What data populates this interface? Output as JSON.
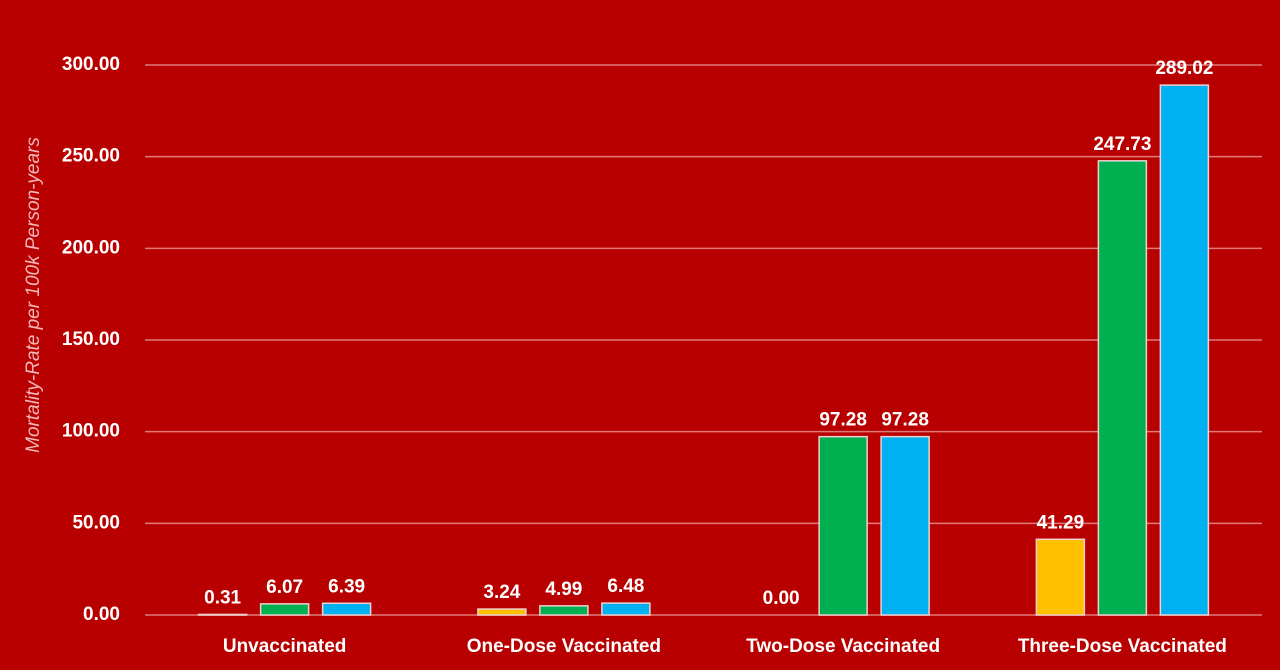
{
  "chart_data": {
    "type": "bar",
    "y_label": "Mortality-Rate per 100k Person-years",
    "categories": [
      "Unvaccinated",
      "One-Dose Vaccinated",
      "Two-Dose Vaccinated",
      "Three-Dose Vaccinated"
    ],
    "series": [
      {
        "color": "#ffc000",
        "values": [
          0.31,
          3.24,
          0,
          41.29
        ],
        "value_labels": [
          "0.31",
          "3.24",
          "0.00",
          "41.29"
        ]
      },
      {
        "color": "#00b050",
        "values": [
          6.07,
          4.99,
          97.28,
          247.73
        ]
      },
      {
        "color": "#00b0f0",
        "values": [
          6.39,
          6.48,
          97.28,
          289.02
        ]
      }
    ],
    "ylim": [
      0,
      300
    ],
    "yticks": [
      {
        "value": 0,
        "label": "0.00"
      },
      {
        "value": 50,
        "label": "50.00"
      },
      {
        "value": 100,
        "label": "100.00"
      },
      {
        "value": 150,
        "label": "150.00"
      },
      {
        "value": 200,
        "label": "200.00"
      },
      {
        "value": 250,
        "label": "250.00"
      },
      {
        "value": 300,
        "label": "300.00"
      }
    ],
    "grid": true
  }
}
